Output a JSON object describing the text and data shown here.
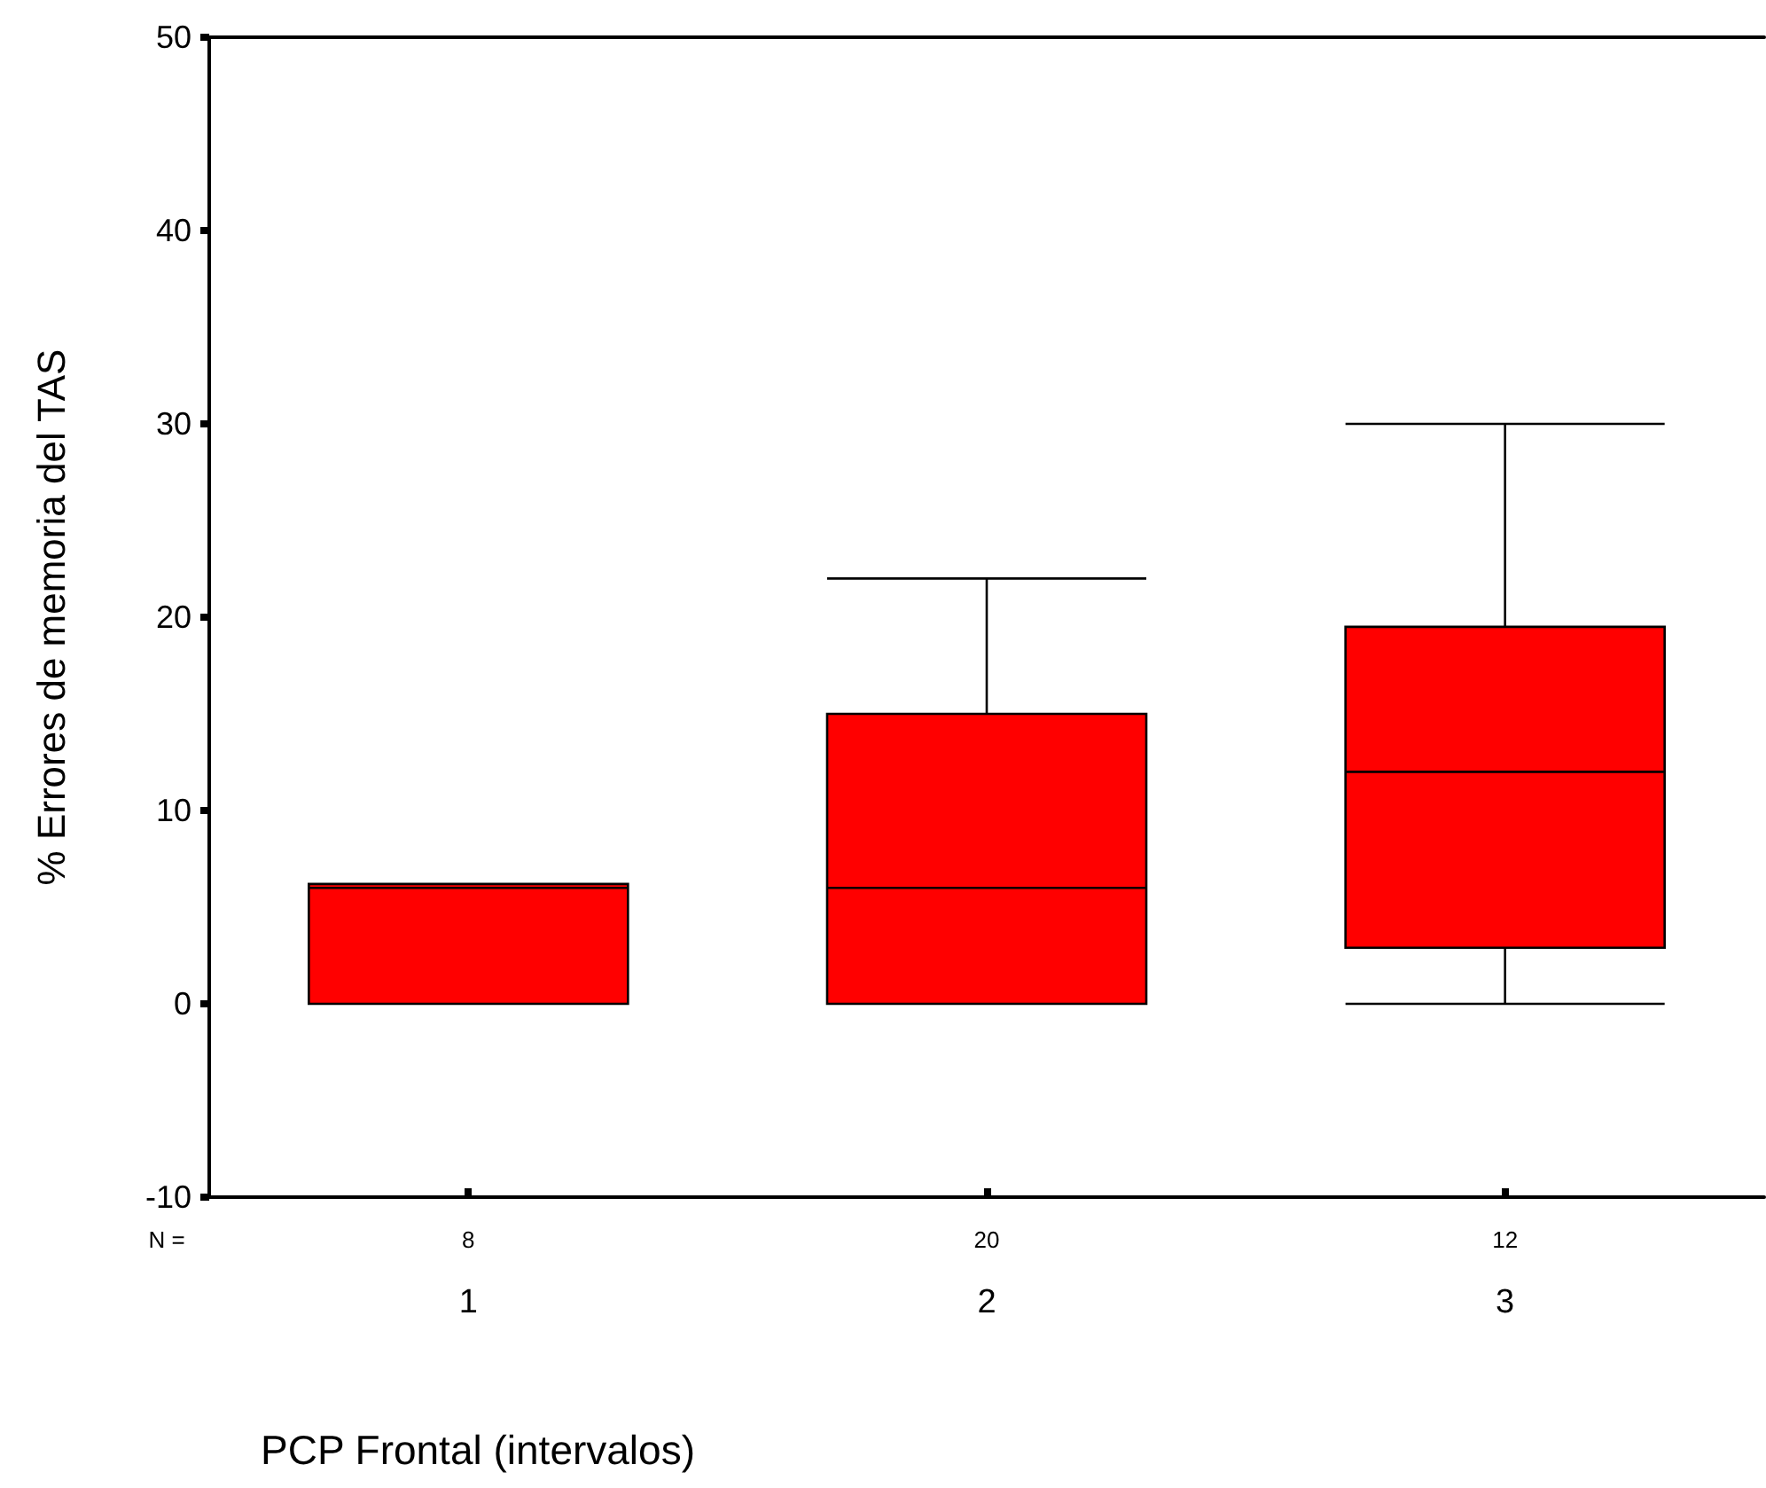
{
  "chart_data": {
    "type": "box",
    "xlabel": "PCP Frontal (intervalos)",
    "ylabel": "% Errores de memoria del TAS",
    "categories": [
      "1",
      "2",
      "3"
    ],
    "boxes": [
      {
        "low": 0,
        "q1": 0,
        "median": 6,
        "q3": 6.2,
        "high": 6.2
      },
      {
        "low": 0,
        "q1": 0,
        "median": 6,
        "q3": 15,
        "high": 22
      },
      {
        "low": 0,
        "q1": 2.9,
        "median": 12,
        "q3": 19.5,
        "high": 30
      }
    ],
    "color": "#ff0000",
    "ylim": [
      -10,
      50
    ],
    "yticks": [
      -10,
      0,
      10,
      20,
      30,
      40,
      50
    ],
    "annotations": [
      "N =",
      "8",
      "20",
      "12"
    ]
  }
}
